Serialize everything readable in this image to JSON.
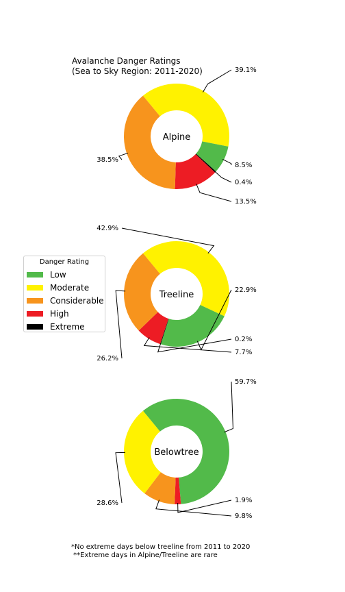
{
  "chart_data": {
    "type": "pie",
    "title": "Avalanche Danger Ratings\n(Sea to Sky Region: 2011-2020)",
    "legend": {
      "title": "Danger Rating",
      "placement": "center-left",
      "entries": [
        {
          "label": "Low",
          "color": "#52BA4A"
        },
        {
          "label": "Moderate",
          "color": "#FFF200"
        },
        {
          "label": "Considerable",
          "color": "#F7941D"
        },
        {
          "label": "High",
          "color": "#ED1C24"
        },
        {
          "label": "Extreme",
          "color": "#000000"
        }
      ]
    },
    "charts": [
      {
        "name": "Alpine",
        "slices": [
          {
            "label": "Moderate",
            "value": 39.1,
            "text": "39.1%"
          },
          {
            "label": "Low",
            "value": 8.5,
            "text": "8.5%"
          },
          {
            "label": "Extreme",
            "value": 0.4,
            "text": "0.4%"
          },
          {
            "label": "High",
            "value": 13.5,
            "text": "13.5%"
          },
          {
            "label": "Considerable",
            "value": 38.5,
            "text": "38.5%"
          }
        ]
      },
      {
        "name": "Treeline",
        "slices": [
          {
            "label": "Moderate",
            "value": 42.9,
            "text": "42.9%"
          },
          {
            "label": "Low",
            "value": 22.9,
            "text": "22.9%"
          },
          {
            "label": "Extreme",
            "value": 0.2,
            "text": "0.2%"
          },
          {
            "label": "High",
            "value": 7.7,
            "text": "7.7%"
          },
          {
            "label": "Considerable",
            "value": 26.2,
            "text": "26.2%"
          }
        ]
      },
      {
        "name": "Belowtree",
        "slices": [
          {
            "label": "Low",
            "value": 59.7,
            "text": "59.7%"
          },
          {
            "label": "High",
            "value": 1.9,
            "text": "1.9%"
          },
          {
            "label": "Considerable",
            "value": 9.8,
            "text": "9.8%"
          },
          {
            "label": "Moderate",
            "value": 28.6,
            "text": "28.6%"
          }
        ]
      }
    ]
  },
  "footnotes": {
    "line1": "*No extreme days below treeline from 2011 to 2020",
    "line2": " **Extreme days in Alpine/Treeline are rare"
  }
}
